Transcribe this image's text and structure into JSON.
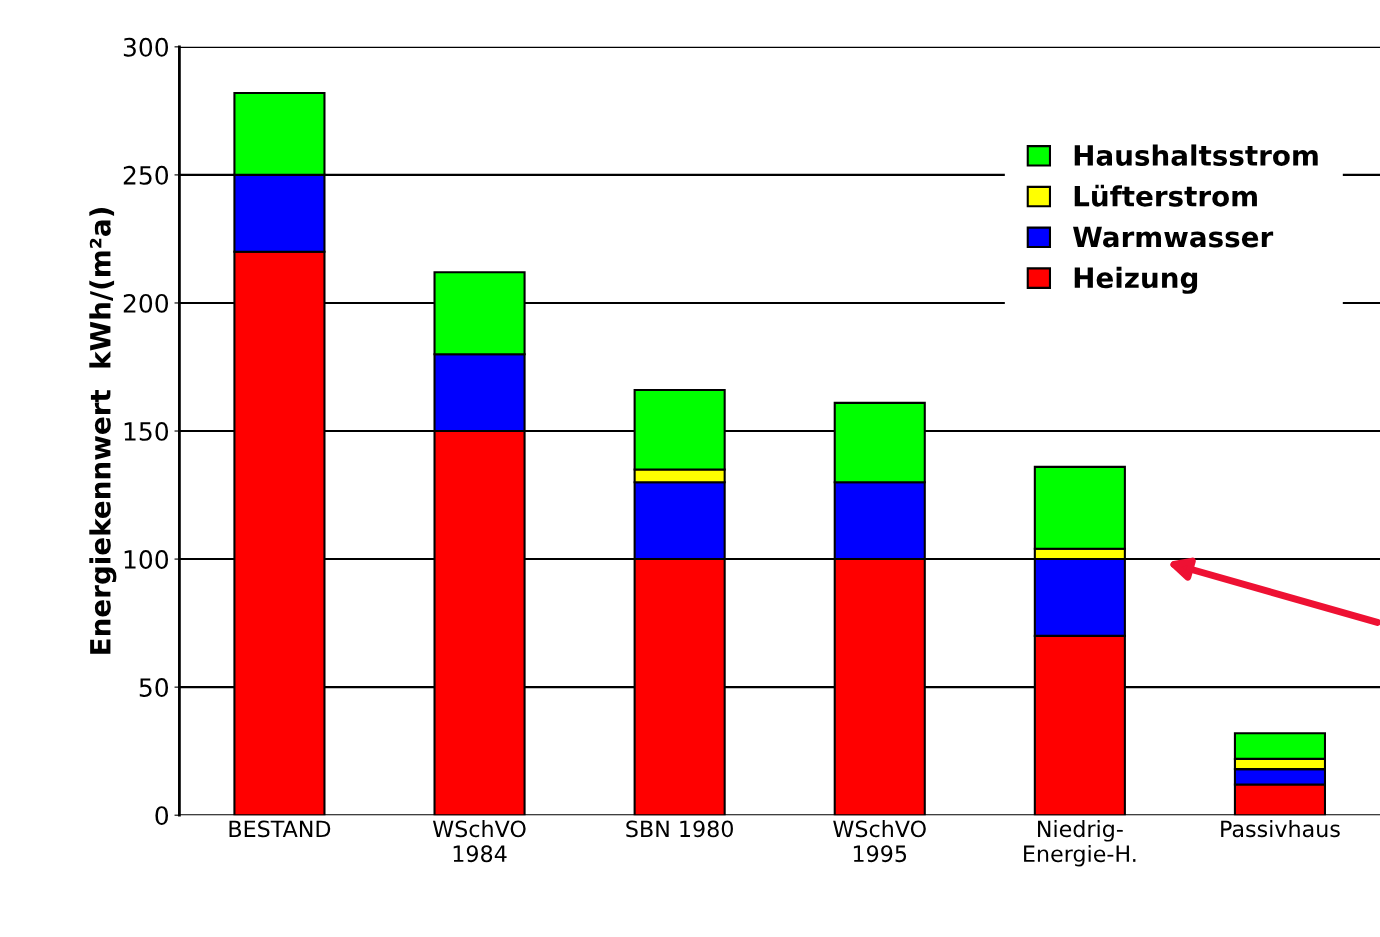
{
  "chart_data": {
    "type": "bar",
    "stacked": true,
    "ylabel": "Energiekennwert  kWh/(m²a)",
    "categories": [
      "BESTAND",
      "WSchVO\n1984",
      "SBN 1980",
      "WSchVO\n1995",
      "Niedrig-\nEnergie-H.",
      "Passivhaus"
    ],
    "series": [
      {
        "name": "Heizung",
        "color": "#ff0000",
        "values": [
          220,
          150,
          100,
          100,
          70,
          12
        ]
      },
      {
        "name": "Warmwasser",
        "color": "#0000ff",
        "values": [
          30,
          30,
          30,
          30,
          30,
          6
        ]
      },
      {
        "name": "Lüfterstrom",
        "color": "#ffff00",
        "values": [
          0,
          0,
          5,
          0,
          4,
          4
        ]
      },
      {
        "name": "Haushaltsstrom",
        "color": "#00ff00",
        "values": [
          32,
          32,
          31,
          31,
          32,
          10
        ]
      }
    ],
    "ylim": [
      0,
      300
    ],
    "yticks": [
      0,
      50,
      100,
      150,
      200,
      250,
      300
    ],
    "grid": "y",
    "legend": "top right"
  }
}
